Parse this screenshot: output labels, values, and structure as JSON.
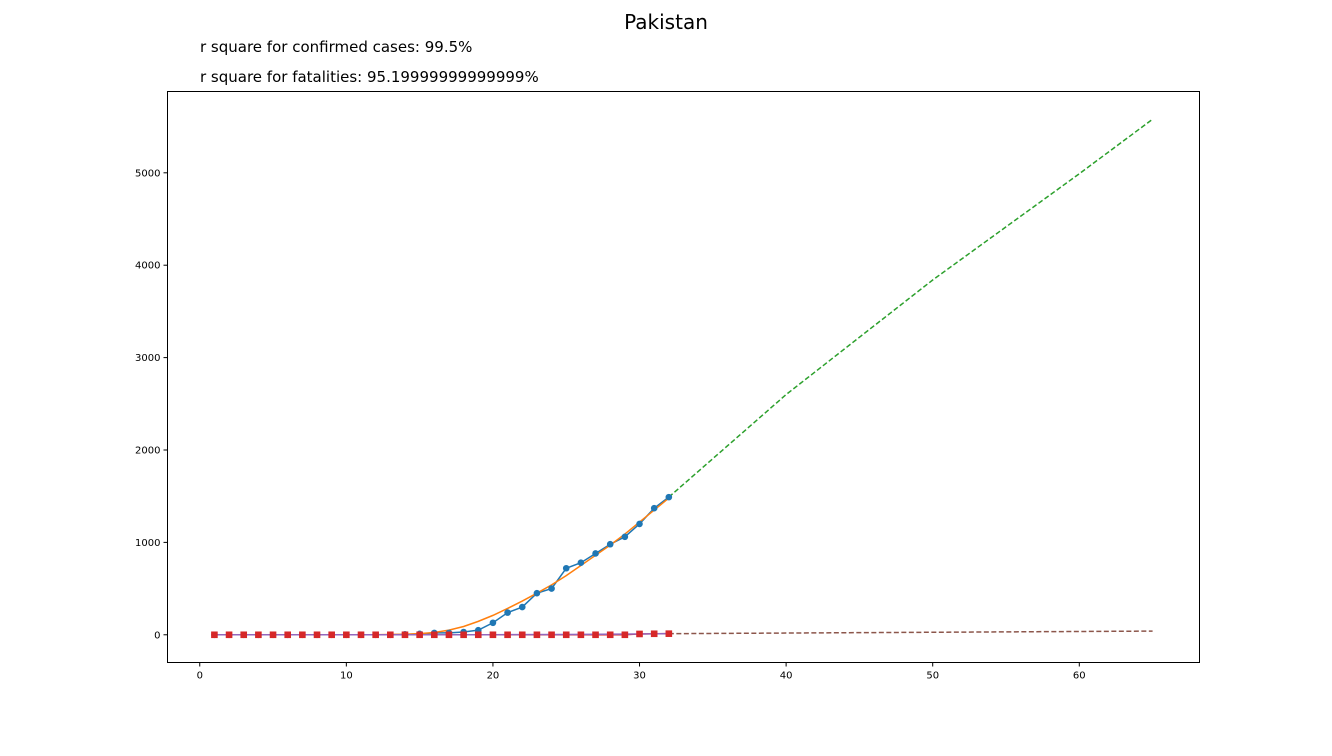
{
  "chart_data": {
    "type": "line",
    "title": "Pakistan",
    "annotations": [
      "r square for confirmed cases: 99.5%",
      "r square for fatalities: 95.19999999999999%"
    ],
    "xlabel": "",
    "ylabel": "",
    "xlim": [
      -2.2,
      68.2
    ],
    "ylim": [
      -300,
      5880
    ],
    "xticks": [
      0,
      10,
      20,
      30,
      40,
      50,
      60
    ],
    "yticks": [
      0,
      1000,
      2000,
      3000,
      4000,
      5000
    ],
    "grid": false,
    "series": [
      {
        "kind": "observed confirmed",
        "color": "#1f77b4",
        "marker": "circle",
        "line": "solid",
        "x": [
          1,
          2,
          3,
          4,
          5,
          6,
          7,
          8,
          9,
          10,
          11,
          12,
          13,
          14,
          15,
          16,
          17,
          18,
          19,
          20,
          21,
          22,
          23,
          24,
          25,
          26,
          27,
          28,
          29,
          30,
          31,
          32
        ],
        "y": [
          0,
          0,
          0,
          0,
          0,
          0,
          0,
          0,
          0,
          0,
          0,
          0,
          0,
          5,
          10,
          20,
          20,
          30,
          50,
          130,
          240,
          300,
          450,
          500,
          720,
          780,
          880,
          980,
          1060,
          1200,
          1370,
          1490
        ]
      },
      {
        "kind": "fitted confirmed",
        "color": "#ff7f0e",
        "marker": "none",
        "line": "solid",
        "x": [
          1,
          4,
          7,
          10,
          12,
          14,
          15,
          16,
          17,
          18,
          19,
          20,
          21,
          22,
          23,
          24,
          25,
          26,
          27,
          28,
          29,
          30,
          31,
          32
        ],
        "y": [
          0,
          0,
          0,
          0,
          1,
          6,
          12,
          25,
          50,
          90,
          145,
          210,
          285,
          365,
          450,
          540,
          640,
          750,
          860,
          970,
          1090,
          1220,
          1350,
          1480
        ]
      },
      {
        "kind": "forecast confirmed",
        "color": "#2ca02c",
        "marker": "none",
        "line": "dashed",
        "x": [
          32,
          40,
          50,
          60,
          65
        ],
        "y": [
          1490,
          2600,
          3840,
          4990,
          5580
        ]
      },
      {
        "kind": "observed fatalities",
        "color": "#d62728",
        "marker": "square",
        "line": "solid",
        "x": [
          1,
          2,
          3,
          4,
          5,
          6,
          7,
          8,
          9,
          10,
          11,
          12,
          13,
          14,
          15,
          16,
          17,
          18,
          19,
          20,
          21,
          22,
          23,
          24,
          25,
          26,
          27,
          28,
          29,
          30,
          31,
          32
        ],
        "y": [
          0,
          0,
          0,
          0,
          0,
          0,
          0,
          0,
          0,
          0,
          0,
          0,
          0,
          0,
          0,
          0,
          0,
          0,
          0,
          0,
          0,
          0,
          0,
          0,
          0,
          0,
          0,
          0,
          0,
          9,
          11,
          12
        ]
      },
      {
        "kind": "fitted fatalities",
        "color": "#9467bd",
        "marker": "none",
        "line": "solid",
        "x": [
          1,
          10,
          20,
          25,
          30,
          32
        ],
        "y": [
          0,
          0,
          1,
          3,
          8,
          12
        ]
      },
      {
        "kind": "forecast fatalities",
        "color": "#8c564b",
        "marker": "none",
        "line": "dashed",
        "x": [
          32,
          65
        ],
        "y": [
          12,
          40
        ]
      }
    ]
  }
}
